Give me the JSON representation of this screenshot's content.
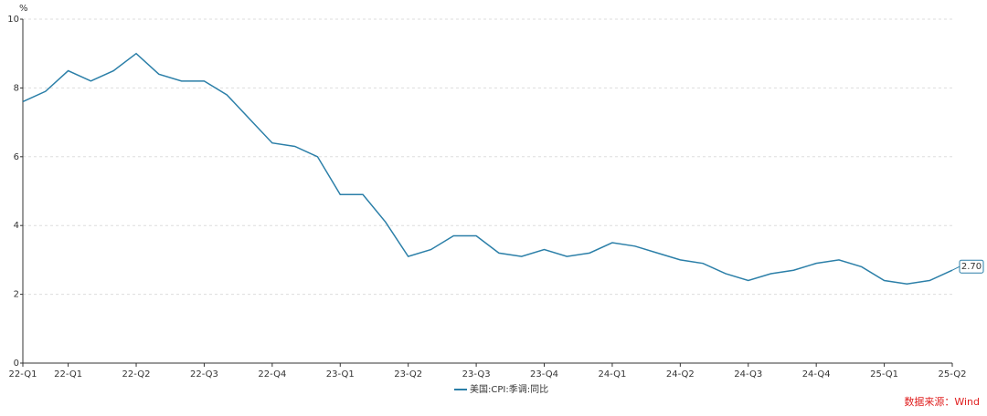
{
  "chart_data": {
    "type": "line",
    "y_unit": "%",
    "categories": [
      "22-Q1",
      null,
      "22-Q1",
      null,
      null,
      "22-Q2",
      null,
      null,
      "22-Q3",
      null,
      null,
      "22-Q4",
      null,
      null,
      "23-Q1",
      null,
      null,
      "23-Q2",
      null,
      null,
      "23-Q3",
      null,
      null,
      "23-Q4",
      null,
      null,
      "24-Q1",
      null,
      null,
      "24-Q2",
      null,
      null,
      "24-Q3",
      null,
      null,
      "24-Q4",
      null,
      null,
      "25-Q1",
      null,
      null,
      "25-Q2"
    ],
    "series": [
      {
        "name": "美国:CPI:季调:同比",
        "color": "#2b7fa8",
        "values": [
          7.6,
          7.9,
          8.5,
          8.2,
          8.5,
          9.0,
          8.4,
          8.2,
          8.2,
          7.8,
          7.1,
          6.4,
          6.3,
          6.0,
          4.9,
          4.9,
          4.1,
          3.1,
          3.3,
          3.7,
          3.7,
          3.2,
          3.1,
          3.3,
          3.1,
          3.2,
          3.5,
          3.4,
          3.2,
          3.0,
          2.9,
          2.6,
          2.4,
          2.6,
          2.7,
          2.9,
          3.0,
          2.8,
          2.4,
          2.3,
          2.4,
          2.7
        ],
        "value_labels": [
          null,
          null,
          null,
          null,
          null,
          null,
          null,
          null,
          null,
          null,
          null,
          null,
          null,
          null,
          null,
          null,
          null,
          null,
          null,
          null,
          null,
          null,
          null,
          null,
          null,
          null,
          null,
          null,
          null,
          null,
          null,
          null,
          null,
          null,
          null,
          null,
          null,
          null,
          null,
          null,
          null,
          "2.70"
        ]
      }
    ],
    "ylim": [
      0,
      10
    ],
    "yticks": [
      0,
      2,
      4,
      6,
      8,
      10
    ],
    "grid": true,
    "legend": "bottom",
    "source": "数据来源：Wind"
  }
}
